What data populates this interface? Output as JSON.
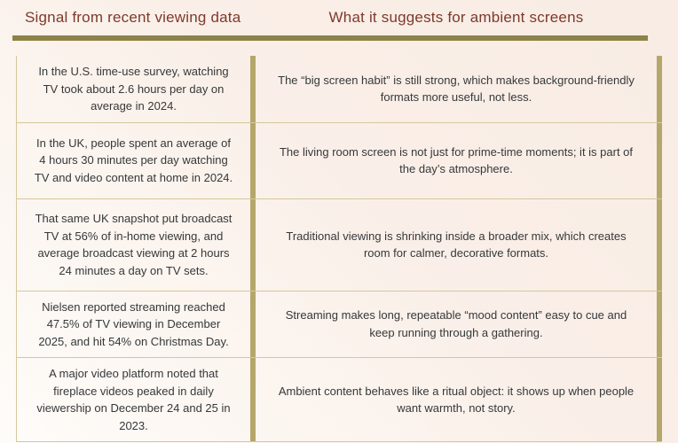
{
  "header": {
    "left_title": "Signal from recent viewing data",
    "right_title": "What it suggests for ambient screens"
  },
  "colors": {
    "title_text": "#7d3a2b",
    "header_rule": "#8d8248",
    "column_bars": "#b5a76b",
    "row_separators": "#d5c79c",
    "body_text": "#35383a",
    "background_top_right": "#f8ece4",
    "background_bottom_left": "#fefcf9"
  },
  "table": {
    "rows": [
      {
        "signal": "In the U.S. time-use survey, watching TV took about 2.6 hours per day on average in 2024.",
        "suggests": "The “big screen habit” is still strong, which makes background-friendly formats more useful, not less."
      },
      {
        "signal": "In the UK, people spent an average of 4 hours 30 minutes per day watching TV and video content at home in 2024.",
        "suggests": "The living room screen is not just for prime-time moments; it is part of the day’s atmosphere."
      },
      {
        "signal": "That same UK snapshot put broadcast TV at 56% of in-home viewing, and average broadcast viewing at 2 hours 24 minutes a day on TV sets.",
        "suggests": "Traditional viewing is shrinking inside a broader mix, which creates room for calmer, decorative formats."
      },
      {
        "signal": "Nielsen reported streaming reached 47.5% of TV viewing in December 2025, and hit 54% on Christmas Day.",
        "suggests": "Streaming makes long, repeatable “mood content” easy to cue and keep running through a gathering."
      },
      {
        "signal": "A major video platform noted that fireplace videos peaked in daily viewership on December 24 and 25 in 2023.",
        "suggests": "Ambient content behaves like a ritual object: it shows up when people want warmth, not story."
      }
    ]
  }
}
